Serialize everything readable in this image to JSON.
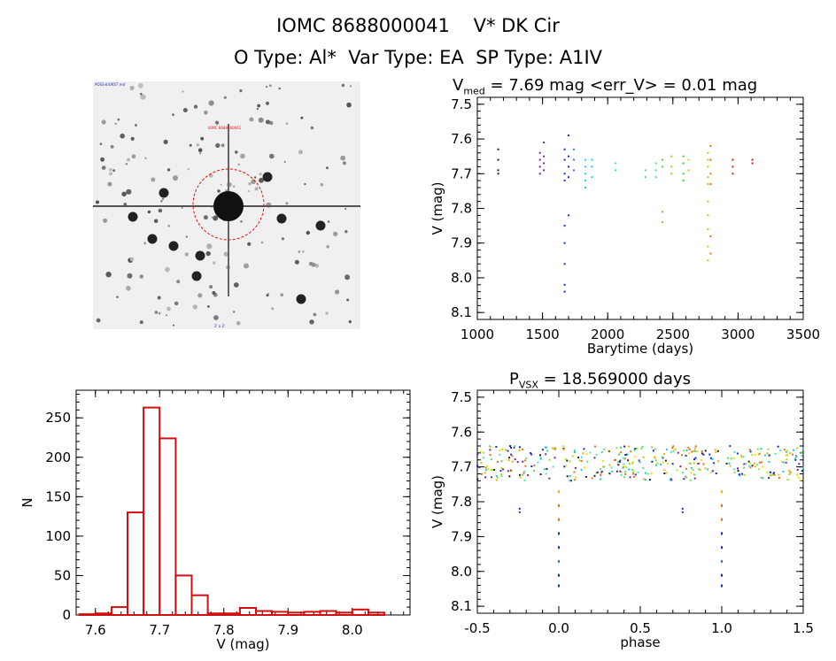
{
  "header": {
    "line1": "IOMC 8688000041    V* DK Cir",
    "line2": "O Type: Al*  Var Type: EA  SP Type: A1IV"
  },
  "image_panel": {
    "description_labels": [
      "POSS-II/UKST red",
      "IOMC 8688000041",
      "2' x 2'"
    ]
  },
  "chart_data": [
    {
      "type": "scatter",
      "title_main": "V",
      "title_sub": "med",
      "title_rest": " = 7.69 mag <err_V> = 0.01 mag",
      "xlabel": "Barytime (days)",
      "ylabel": "V (mag)",
      "xlim": [
        1000,
        3500
      ],
      "ylim": [
        8.12,
        7.48
      ],
      "xticks": [
        1000,
        1500,
        2000,
        2500,
        3000,
        3500
      ],
      "yticks": [
        7.5,
        7.6,
        7.7,
        7.8,
        7.9,
        8.0,
        8.1
      ],
      "groups": [
        {
          "x": 1160,
          "y": [
            7.63,
            7.66,
            7.69,
            7.7
          ],
          "color": "#222222"
        },
        {
          "x": 1480,
          "y": [
            7.64,
            7.66,
            7.68,
            7.7
          ],
          "color": "#7a1f9e"
        },
        {
          "x": 1510,
          "y": [
            7.61,
            7.65,
            7.67,
            7.69
          ],
          "color": "#7a1f9e"
        },
        {
          "x": 1670,
          "y": [
            7.63,
            7.66,
            7.7,
            7.72,
            7.85,
            7.9,
            7.96,
            8.02,
            8.04
          ],
          "color": "#1030c8"
        },
        {
          "x": 1700,
          "y": [
            7.59,
            7.65,
            7.68,
            7.71,
            7.82
          ],
          "color": "#1030c8"
        },
        {
          "x": 1740,
          "y": [
            7.63,
            7.66,
            7.69
          ],
          "color": "#3a6ee8"
        },
        {
          "x": 1830,
          "y": [
            7.66,
            7.68,
            7.7,
            7.72,
            7.74
          ],
          "color": "#18c8e8"
        },
        {
          "x": 1880,
          "y": [
            7.66,
            7.68,
            7.71
          ],
          "color": "#18c8e8"
        },
        {
          "x": 2060,
          "y": [
            7.67,
            7.69
          ],
          "color": "#40e8c0"
        },
        {
          "x": 2290,
          "y": [
            7.69,
            7.71
          ],
          "color": "#50e070"
        },
        {
          "x": 2370,
          "y": [
            7.67,
            7.69,
            7.71
          ],
          "color": "#50e070"
        },
        {
          "x": 2420,
          "y": [
            7.66,
            7.68,
            7.81,
            7.84
          ],
          "color": "#60d840"
        },
        {
          "x": 2490,
          "y": [
            7.65,
            7.68,
            7.7
          ],
          "color": "#80e020"
        },
        {
          "x": 2580,
          "y": [
            7.65,
            7.67,
            7.7,
            7.72
          ],
          "color": "#40d020"
        },
        {
          "x": 2620,
          "y": [
            7.66,
            7.69
          ],
          "color": "#a0e010"
        },
        {
          "x": 2770,
          "y": [
            7.64,
            7.66,
            7.68,
            7.71,
            7.73,
            7.78,
            7.82,
            7.86,
            7.91,
            7.95
          ],
          "color": "#f0b000"
        },
        {
          "x": 2790,
          "y": [
            7.62,
            7.66,
            7.7,
            7.73,
            7.88,
            7.93
          ],
          "color": "#e87010"
        },
        {
          "x": 2960,
          "y": [
            7.66,
            7.68,
            7.7
          ],
          "color": "#e02010"
        },
        {
          "x": 3110,
          "y": [
            7.66,
            7.67
          ],
          "color": "#d01010"
        }
      ]
    },
    {
      "type": "bar",
      "xlabel": "V (mag)",
      "ylabel": "N",
      "xlim": [
        7.57,
        8.09
      ],
      "ylim": [
        0,
        285
      ],
      "xticks": [
        7.6,
        7.7,
        7.8,
        7.9,
        8.0
      ],
      "yticks": [
        0,
        50,
        100,
        150,
        200,
        250
      ],
      "bin_width": 0.025,
      "bin_starts": [
        7.575,
        7.6,
        7.625,
        7.65,
        7.675,
        7.7,
        7.725,
        7.75,
        7.775,
        7.8,
        7.825,
        7.85,
        7.875,
        7.9,
        7.925,
        7.95,
        7.975,
        8.0,
        8.025
      ],
      "values": [
        1,
        2,
        10,
        130,
        263,
        224,
        50,
        25,
        2,
        2,
        9,
        5,
        4,
        3,
        4,
        5,
        3,
        7,
        3
      ],
      "color": "#d01010"
    },
    {
      "type": "scatter",
      "title_main": "P",
      "title_sub": "VSX",
      "title_rest": " = 18.569000 days",
      "xlabel": "phase",
      "ylabel": "V (mag)",
      "xlim": [
        -0.5,
        1.5
      ],
      "ylim": [
        8.12,
        7.48
      ],
      "xticks": [
        -0.5,
        0.0,
        0.5,
        1.0,
        1.5
      ],
      "yticks": [
        7.5,
        7.6,
        7.7,
        7.8,
        7.9,
        8.0,
        8.1
      ],
      "dip_values": [
        7.77,
        7.81,
        7.85,
        7.89,
        7.93,
        7.97,
        8.01,
        8.04
      ],
      "dip_colors": [
        "#f0b000",
        "#e87010",
        "#e87010",
        "#1030c8",
        "#1030c8",
        "#3a6ee8",
        "#1030c8",
        "#1030c8"
      ],
      "secondary": {
        "phase": -0.24,
        "values": [
          7.82,
          7.83
        ],
        "color": "#1030c8"
      },
      "baseline_colors": [
        "#222222",
        "#7a1f9e",
        "#1030c8",
        "#18c8e8",
        "#40e8c0",
        "#50e070",
        "#a0e010",
        "#f0e000",
        "#f0b000",
        "#e87010"
      ]
    }
  ]
}
